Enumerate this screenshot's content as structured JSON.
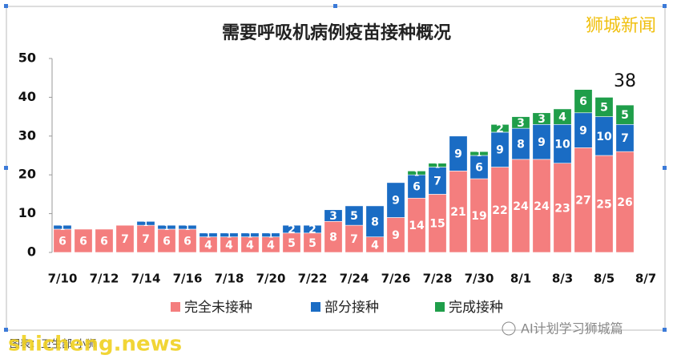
{
  "chart_data": {
    "type": "stacked-bar",
    "title": "需要呼吸机病例疫苗接种概况",
    "categories": [
      "7/10",
      null,
      "7/12",
      null,
      "7/14",
      null,
      "7/16",
      null,
      "7/18",
      null,
      "7/20",
      null,
      "7/22",
      null,
      "7/24",
      null,
      "7/26",
      null,
      "7/28",
      null,
      "7/30",
      null,
      "8/1",
      null,
      "8/3",
      null,
      "8/5",
      null,
      "8/7"
    ],
    "series": [
      {
        "name": "完全未接种",
        "color": "#f47e7e",
        "values": [
          6,
          6,
          6,
          7,
          7,
          6,
          6,
          4,
          4,
          4,
          4,
          5,
          5,
          8,
          7,
          4,
          9,
          14,
          15,
          21,
          19,
          22,
          24,
          24,
          23,
          27,
          25,
          26,
          null
        ]
      },
      {
        "name": "部分接种",
        "color": "#1a6cc4",
        "values": [
          1,
          0,
          0,
          0,
          1,
          1,
          1,
          1,
          1,
          1,
          1,
          2,
          2,
          3,
          5,
          8,
          9,
          6,
          7,
          9,
          6,
          9,
          8,
          9,
          10,
          9,
          10,
          7,
          null
        ]
      },
      {
        "name": "完成接种",
        "color": "#1f9e4a",
        "values": [
          0,
          0,
          0,
          0,
          0,
          0,
          0,
          0,
          0,
          0,
          0,
          0,
          0,
          0,
          0,
          0,
          0,
          1,
          1,
          0,
          1,
          2,
          3,
          3,
          4,
          6,
          5,
          5,
          null
        ]
      }
    ],
    "ylim": [
      0,
      50
    ],
    "yticks": [
      0,
      10,
      20,
      30,
      40,
      50
    ],
    "annotation": "38",
    "legend": "bottom",
    "watermark": "狮城新闻",
    "source": "图表：卫生部 小狮",
    "site": "shicheng.news",
    "account": "AI计划学习狮城篇"
  }
}
